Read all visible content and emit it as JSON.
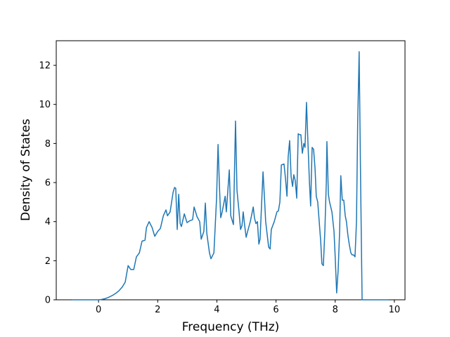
{
  "chart_data": {
    "type": "line",
    "x_label": "Frequency (THz)",
    "y_label": "Density of States",
    "xlim": [
      -1.43,
      10.36
    ],
    "ylim": [
      0,
      13.26
    ],
    "xticks": [
      0,
      2,
      4,
      6,
      8,
      10
    ],
    "yticks": [
      0,
      2,
      4,
      6,
      8,
      10,
      12
    ],
    "series": [
      {
        "color": "#1f77b4",
        "x": [
          -0.9,
          0,
          0.1,
          0.2,
          0.3,
          0.4,
          0.5,
          0.6,
          0.7,
          0.8,
          0.9,
          1.0,
          1.09,
          1.19,
          1.28,
          1.38,
          1.47,
          1.57,
          1.62,
          1.71,
          1.81,
          1.9,
          2.0,
          2.09,
          2.19,
          2.28,
          2.33,
          2.42,
          2.52,
          2.57,
          2.61,
          2.66,
          2.71,
          2.76,
          2.8,
          2.9,
          2.99,
          3.09,
          3.18,
          3.23,
          3.33,
          3.42,
          3.47,
          3.56,
          3.61,
          3.66,
          3.75,
          3.8,
          3.9,
          3.99,
          4.04,
          4.09,
          4.13,
          4.18,
          4.28,
          4.32,
          4.42,
          4.47,
          4.56,
          4.63,
          4.68,
          4.75,
          4.8,
          4.85,
          4.89,
          4.94,
          4.99,
          5.04,
          5.13,
          5.23,
          5.27,
          5.32,
          5.37,
          5.42,
          5.46,
          5.56,
          5.61,
          5.65,
          5.75,
          5.8,
          5.84,
          5.94,
          6.03,
          6.08,
          6.13,
          6.18,
          6.27,
          6.32,
          6.37,
          6.41,
          6.46,
          6.51,
          6.56,
          6.6,
          6.65,
          6.7,
          6.75,
          6.79,
          6.84,
          6.89,
          6.94,
          6.98,
          7.03,
          7.08,
          7.13,
          7.17,
          7.22,
          7.27,
          7.32,
          7.36,
          7.41,
          7.46,
          7.51,
          7.55,
          7.6,
          7.65,
          7.7,
          7.72,
          7.77,
          7.81,
          7.89,
          7.96,
          8.0,
          8.05,
          8.1,
          8.15,
          8.19,
          8.24,
          8.29,
          8.34,
          8.38,
          8.43,
          8.48,
          8.53,
          8.57,
          8.62,
          8.67,
          8.72,
          8.76,
          8.81,
          8.86,
          8.91,
          9.81
        ],
        "values": [
          0,
          0,
          0.02,
          0.05,
          0.1,
          0.17,
          0.25,
          0.35,
          0.48,
          0.65,
          0.9,
          1.75,
          1.55,
          1.55,
          2.2,
          2.4,
          3.0,
          3.05,
          3.7,
          4.0,
          3.7,
          3.25,
          3.5,
          3.65,
          4.3,
          4.6,
          4.3,
          4.5,
          5.5,
          5.75,
          5.7,
          3.6,
          5.4,
          3.9,
          3.75,
          4.4,
          3.95,
          4.05,
          4.1,
          4.75,
          4.25,
          4.0,
          3.1,
          3.5,
          4.95,
          3.4,
          2.4,
          2.1,
          2.4,
          5.2,
          7.95,
          5.7,
          4.2,
          4.5,
          5.3,
          4.5,
          6.65,
          4.3,
          3.85,
          9.15,
          5.6,
          4.5,
          3.6,
          3.8,
          4.5,
          3.8,
          3.2,
          3.5,
          4.0,
          4.75,
          4.2,
          3.9,
          4.0,
          2.85,
          3.1,
          6.55,
          5.2,
          4.0,
          2.7,
          2.6,
          3.6,
          4.0,
          4.5,
          4.55,
          5.0,
          6.9,
          6.95,
          6.2,
          5.3,
          7.3,
          8.15,
          6.3,
          5.8,
          6.4,
          6.1,
          5.2,
          8.5,
          8.45,
          8.45,
          7.5,
          8.0,
          7.8,
          10.1,
          8.0,
          6.0,
          4.8,
          7.8,
          7.7,
          6.7,
          5.3,
          5.0,
          4.0,
          3.0,
          1.85,
          1.75,
          3.5,
          6.0,
          8.1,
          5.4,
          5.0,
          4.5,
          3.5,
          2.2,
          0.35,
          1.5,
          3.5,
          6.35,
          5.1,
          5.1,
          4.3,
          4.0,
          3.3,
          2.8,
          2.4,
          2.3,
          2.3,
          2.2,
          4.0,
          9.0,
          12.7,
          6.0,
          0,
          0
        ]
      }
    ]
  }
}
